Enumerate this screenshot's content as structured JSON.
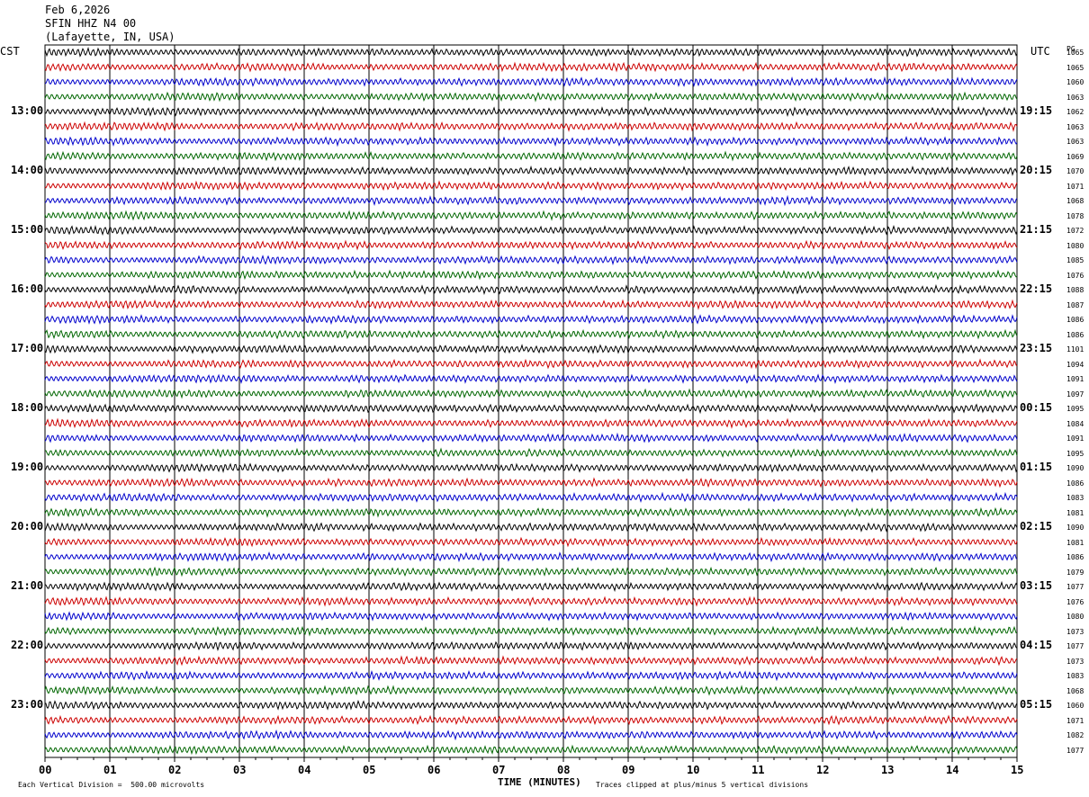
{
  "header": {
    "date": "Feb 6,2026",
    "station": "SFIN HHZ N4 00",
    "location": "(Lafayette, IN, USA)"
  },
  "labels": {
    "left_tz": "CST",
    "right_tz": "UTC",
    "right_col": "PG",
    "x_title": "TIME (MINUTES)",
    "scale_note": "Each Vertical Division =  500.00 microvolts",
    "clip_note": "Traces clipped at plus/minus 5 vertical divisions"
  },
  "chart_data": {
    "type": "line",
    "xlabel": "TIME (MINUTES)",
    "xlim": [
      0,
      15
    ],
    "x_ticks": [
      "00",
      "01",
      "02",
      "03",
      "04",
      "05",
      "06",
      "07",
      "08",
      "09",
      "10",
      "11",
      "12",
      "13",
      "14",
      "15"
    ],
    "left_hour_labels": [
      "13:00",
      "14:00",
      "15:00",
      "16:00",
      "17:00",
      "18:00",
      "19:00",
      "20:00",
      "21:00",
      "22:00",
      "23:00"
    ],
    "right_hour_labels": [
      "19:15",
      "20:15",
      "21:15",
      "22:15",
      "23:15",
      "00:15",
      "01:15",
      "02:15",
      "03:15",
      "04:15",
      "05:15"
    ],
    "trace_colors": [
      "#000000",
      "#cc0000",
      "#0000cc",
      "#006600"
    ],
    "trace_count": 48,
    "right_values": [
      "1065",
      "1065",
      "1060",
      "1063",
      "1062",
      "1063",
      "1063",
      "1069",
      "1070",
      "1071",
      "1068",
      "1078",
      "1072",
      "1080",
      "1085",
      "1076",
      "1088",
      "1087",
      "1086",
      "1086",
      "1101",
      "1094",
      "1091",
      "1097",
      "1095",
      "1084",
      "1091",
      "1095",
      "1090",
      "1086",
      "1083",
      "1081",
      "1090",
      "1081",
      "1086",
      "1079",
      "1077",
      "1076",
      "1080",
      "1073",
      "1077",
      "1073",
      "1083",
      "1068",
      "1060",
      "1071",
      "1082",
      "1077"
    ]
  }
}
